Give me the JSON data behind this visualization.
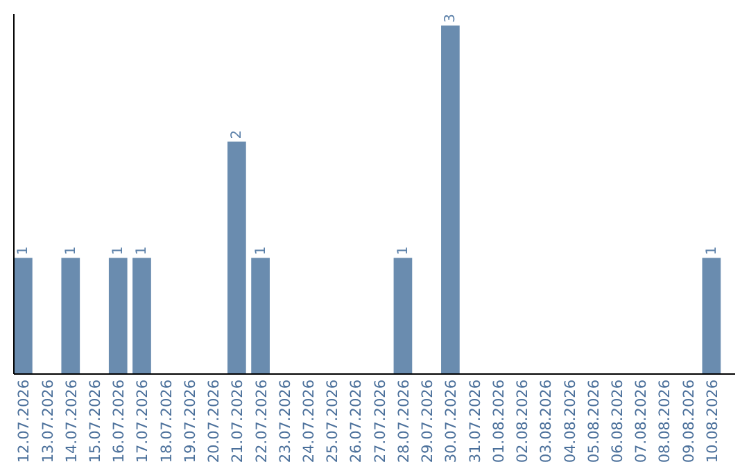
{
  "chart_data": {
    "type": "bar",
    "categories": [
      "12.07.2026",
      "13.07.2026",
      "14.07.2026",
      "15.07.2026",
      "16.07.2026",
      "17.07.2026",
      "18.07.2026",
      "19.07.2026",
      "20.07.2026",
      "21.07.2026",
      "22.07.2026",
      "23.07.2026",
      "24.07.2026",
      "25.07.2026",
      "26.07.2026",
      "27.07.2026",
      "28.07.2026",
      "29.07.2026",
      "30.07.2026",
      "31.07.2026",
      "01.08.2026",
      "02.08.2026",
      "03.08.2026",
      "04.08.2026",
      "05.08.2026",
      "06.08.2026",
      "07.08.2026",
      "08.08.2026",
      "09.08.2026",
      "10.08.2026"
    ],
    "values": [
      1,
      0,
      1,
      0,
      1,
      1,
      0,
      0,
      0,
      2,
      1,
      0,
      0,
      0,
      0,
      0,
      1,
      0,
      3,
      0,
      0,
      0,
      0,
      0,
      0,
      0,
      0,
      0,
      0,
      1
    ],
    "value_labels": [
      "1",
      null,
      "1",
      null,
      "1",
      "1",
      null,
      null,
      null,
      "2",
      "1",
      null,
      null,
      null,
      null,
      null,
      "1",
      null,
      "3",
      null,
      null,
      null,
      null,
      null,
      null,
      null,
      null,
      null,
      null,
      "1"
    ],
    "color": "#6a8caf",
    "ylim": [
      0,
      3.1
    ],
    "tick_labels": "x"
  }
}
